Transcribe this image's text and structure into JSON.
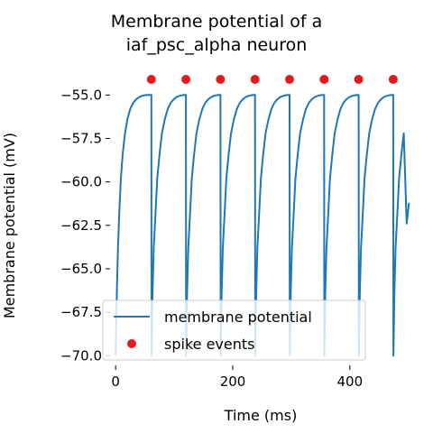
{
  "chart_data": {
    "type": "line",
    "title_lines": [
      "Membrane potential of a",
      "iaf_psc_alpha neuron"
    ],
    "xlabel": "Time (ms)",
    "ylabel": "Membrane potential (mV)",
    "xlim": [
      -8,
      505
    ],
    "ylim": [
      -70.4,
      -54.1
    ],
    "xticks": [
      0,
      200,
      400
    ],
    "xtick_labels": [
      "0",
      "200",
      "400"
    ],
    "yticks": [
      -55.0,
      -57.5,
      -60.0,
      -62.5,
      -65.0,
      -67.5,
      -70.0
    ],
    "ytick_labels": [
      "−55.0",
      "−57.5",
      "−60.0",
      "−62.5",
      "−65.0",
      "−67.5",
      "−70.0"
    ],
    "grid": false,
    "legend_position": "lower-left",
    "spike_level": -54.1,
    "series": [
      {
        "name": "membrane potential",
        "color": "#1f77b4",
        "marker": "line",
        "x": [
          0,
          2,
          4,
          6,
          9,
          12,
          16,
          20,
          25,
          30,
          35,
          40,
          45,
          50,
          55,
          58.5,
          61,
          61.3,
          63,
          65,
          68,
          71,
          75,
          79,
          84,
          89,
          94,
          99,
          104,
          109,
          114,
          117.5,
          120,
          120.3,
          122,
          124,
          127,
          130,
          134,
          138,
          143,
          148,
          153,
          158,
          163,
          168,
          173,
          176.5,
          179,
          179.3,
          181,
          183,
          186,
          189,
          193,
          197,
          202,
          207,
          212,
          217,
          222,
          227,
          232,
          235.5,
          238,
          238.3,
          240,
          242,
          245,
          248,
          252,
          256,
          261,
          266,
          271,
          276,
          281,
          286,
          291,
          294.5,
          297,
          297.3,
          299,
          301,
          304,
          307,
          311,
          315,
          320,
          325,
          330,
          335,
          340,
          345,
          350,
          353.5,
          356,
          356.3,
          358,
          360,
          363,
          366,
          370,
          374,
          379,
          384,
          389,
          394,
          399,
          404,
          409,
          412.5,
          415,
          415.3,
          417,
          419,
          422,
          425,
          429,
          433,
          438,
          443,
          448,
          453,
          458,
          463,
          468,
          471.5,
          474,
          474.3,
          476,
          478,
          481,
          484,
          488,
          492,
          497,
          501
        ],
        "y": [
          -70.0,
          -66.4,
          -63.8,
          -61.9,
          -59.8,
          -58.4,
          -57.2,
          -56.4,
          -55.8,
          -55.45,
          -55.25,
          -55.12,
          -55.05,
          -55.01,
          -55.0,
          -55.0,
          -55.0,
          -70.0,
          -66.4,
          -63.8,
          -61.9,
          -59.8,
          -58.4,
          -57.2,
          -56.4,
          -55.8,
          -55.45,
          -55.25,
          -55.12,
          -55.05,
          -55.01,
          -55.0,
          -55.0,
          -70.0,
          -66.4,
          -63.8,
          -61.9,
          -59.8,
          -58.4,
          -57.2,
          -56.4,
          -55.8,
          -55.45,
          -55.25,
          -55.12,
          -55.05,
          -55.01,
          -55.0,
          -55.0,
          -70.0,
          -66.4,
          -63.8,
          -61.9,
          -59.8,
          -58.4,
          -57.2,
          -56.4,
          -55.8,
          -55.45,
          -55.25,
          -55.12,
          -55.05,
          -55.01,
          -55.0,
          -55.0,
          -70.0,
          -66.4,
          -63.8,
          -61.9,
          -59.8,
          -58.4,
          -57.2,
          -56.4,
          -55.8,
          -55.45,
          -55.25,
          -55.12,
          -55.05,
          -55.01,
          -55.0,
          -55.0,
          -70.0,
          -66.4,
          -63.8,
          -61.9,
          -59.8,
          -58.4,
          -57.2,
          -56.4,
          -55.8,
          -55.45,
          -55.25,
          -55.12,
          -55.05,
          -55.01,
          -55.0,
          -55.0,
          -70.0,
          -66.4,
          -63.8,
          -61.9,
          -59.8,
          -58.4,
          -57.2,
          -56.4,
          -55.8,
          -55.45,
          -55.25,
          -55.12,
          -55.05,
          -55.01,
          -55.0,
          -55.0,
          -70.0,
          -66.4,
          -63.8,
          -61.9,
          -59.8,
          -58.4,
          -57.2,
          -56.4,
          -55.8,
          -55.45,
          -55.25,
          -55.12,
          -55.05,
          -55.01,
          -55.0,
          -55.0,
          -70.0,
          -66.4,
          -63.8,
          -61.9,
          -59.8,
          -58.4,
          -57.2,
          -62.4,
          -61.2
        ]
      },
      {
        "name": "spike events",
        "color": "#e31a1c",
        "marker": "point",
        "x": [
          61,
          120,
          179,
          238,
          297,
          356,
          415,
          474
        ]
      }
    ]
  }
}
